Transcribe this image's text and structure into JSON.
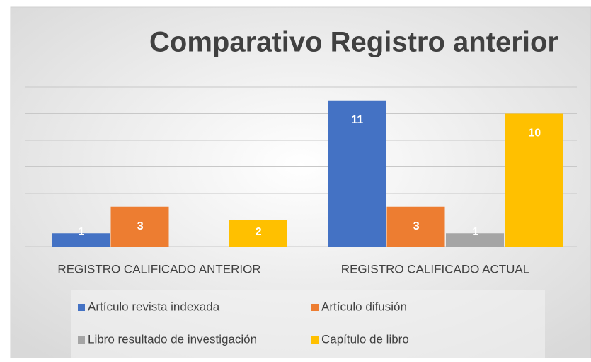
{
  "chart_data": {
    "type": "bar",
    "title": "Comparativo Registro anterior",
    "categories": [
      "REGISTRO CALIFICADO ANTERIOR",
      "REGISTRO CALIFICADO ACTUAL"
    ],
    "series": [
      {
        "name": "Artículo revista indexada",
        "color": "#4472c4",
        "values": [
          1,
          11
        ]
      },
      {
        "name": "Artículo difusión",
        "color": "#ed7d31",
        "values": [
          3,
          3
        ]
      },
      {
        "name": "Libro resultado de investigación",
        "color": "#a5a5a5",
        "values": [
          null,
          1
        ]
      },
      {
        "name": "Capítulo de libro",
        "color": "#ffc000",
        "values": [
          2,
          10
        ]
      }
    ],
    "ylim": [
      0,
      12
    ],
    "yticks": [
      0,
      2,
      4,
      6,
      8,
      10,
      12
    ],
    "grid": true
  }
}
